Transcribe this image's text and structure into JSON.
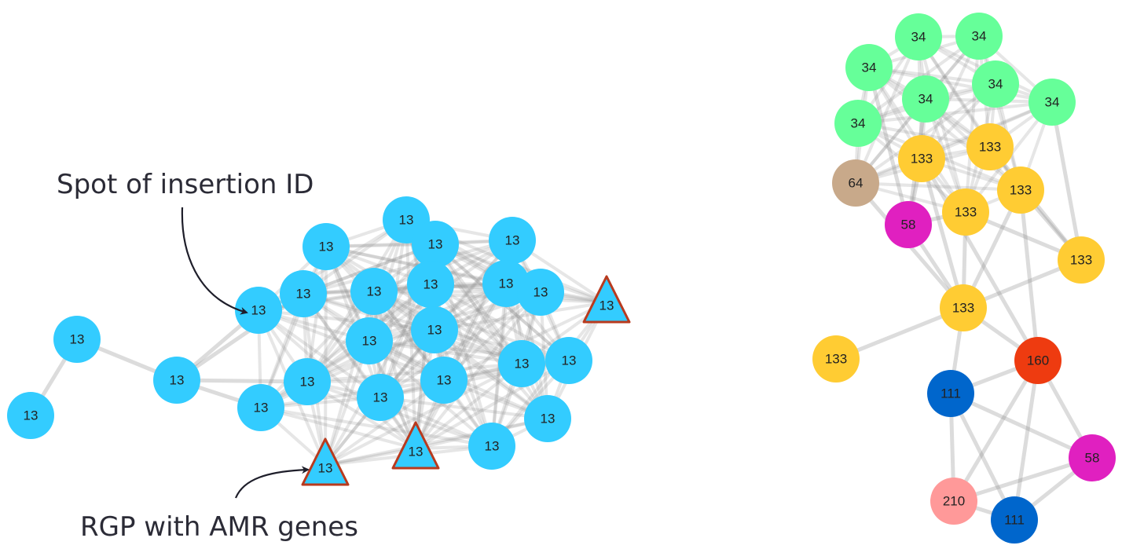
{
  "annotations": {
    "spot_label": "Spot of insertion ID",
    "rgp_label": "RGP with AMR genes"
  },
  "colors": {
    "spot_13": "#33ccff",
    "spot_34": "#66ff99",
    "spot_133": "#ffcc33",
    "spot_64": "#c8a98a",
    "spot_58": "#e020c0",
    "spot_160": "#ee3b10",
    "spot_111": "#0066cc",
    "spot_210": "#ff9999",
    "amr_border": "#b83a1e",
    "edge": "#8c8c8c"
  },
  "networks": [
    {
      "name": "left-network",
      "nodes": [
        {
          "label": "13",
          "color": "spot_13",
          "shape": "circle"
        },
        {
          "label": "13",
          "color": "spot_13",
          "shape": "circle"
        },
        {
          "label": "13",
          "color": "spot_13",
          "shape": "circle"
        },
        {
          "label": "13",
          "color": "spot_13",
          "shape": "circle"
        },
        {
          "label": "13",
          "color": "spot_13",
          "shape": "circle"
        },
        {
          "label": "13",
          "color": "spot_13",
          "shape": "circle"
        },
        {
          "label": "13",
          "color": "spot_13",
          "shape": "circle"
        },
        {
          "label": "13",
          "color": "spot_13",
          "shape": "circle"
        },
        {
          "label": "13",
          "color": "spot_13",
          "shape": "circle"
        },
        {
          "label": "13",
          "color": "spot_13",
          "shape": "circle"
        },
        {
          "label": "13",
          "color": "spot_13",
          "shape": "circle"
        },
        {
          "label": "13",
          "color": "spot_13",
          "shape": "circle"
        },
        {
          "label": "13",
          "color": "spot_13",
          "shape": "circle"
        },
        {
          "label": "13",
          "color": "spot_13",
          "shape": "circle"
        },
        {
          "label": "13",
          "color": "spot_13",
          "shape": "circle"
        },
        {
          "label": "13",
          "color": "spot_13",
          "shape": "circle"
        },
        {
          "label": "13",
          "color": "spot_13",
          "shape": "circle"
        },
        {
          "label": "13",
          "color": "spot_13",
          "shape": "circle"
        },
        {
          "label": "13",
          "color": "spot_13",
          "shape": "circle"
        },
        {
          "label": "13",
          "color": "spot_13",
          "shape": "circle"
        },
        {
          "label": "13",
          "color": "spot_13",
          "shape": "circle"
        },
        {
          "label": "13",
          "color": "spot_13",
          "shape": "circle"
        },
        {
          "label": "13",
          "color": "spot_13",
          "shape": "circle"
        },
        {
          "label": "13",
          "color": "spot_13",
          "shape": "triangle"
        },
        {
          "label": "13",
          "color": "spot_13",
          "shape": "triangle"
        },
        {
          "label": "13",
          "color": "spot_13",
          "shape": "triangle"
        }
      ]
    },
    {
      "name": "right-network",
      "nodes": [
        {
          "label": "34",
          "color": "spot_34",
          "shape": "circle"
        },
        {
          "label": "34",
          "color": "spot_34",
          "shape": "circle"
        },
        {
          "label": "34",
          "color": "spot_34",
          "shape": "circle"
        },
        {
          "label": "34",
          "color": "spot_34",
          "shape": "circle"
        },
        {
          "label": "34",
          "color": "spot_34",
          "shape": "circle"
        },
        {
          "label": "34",
          "color": "spot_34",
          "shape": "circle"
        },
        {
          "label": "34",
          "color": "spot_34",
          "shape": "circle"
        },
        {
          "label": "133",
          "color": "spot_133",
          "shape": "circle"
        },
        {
          "label": "133",
          "color": "spot_133",
          "shape": "circle"
        },
        {
          "label": "64",
          "color": "spot_64",
          "shape": "circle"
        },
        {
          "label": "133",
          "color": "spot_133",
          "shape": "circle"
        },
        {
          "label": "58",
          "color": "spot_58",
          "shape": "circle"
        },
        {
          "label": "133",
          "color": "spot_133",
          "shape": "circle"
        },
        {
          "label": "133",
          "color": "spot_133",
          "shape": "circle"
        },
        {
          "label": "133",
          "color": "spot_133",
          "shape": "circle"
        },
        {
          "label": "133",
          "color": "spot_133",
          "shape": "circle"
        },
        {
          "label": "160",
          "color": "spot_160",
          "shape": "circle"
        },
        {
          "label": "111",
          "color": "spot_111",
          "shape": "circle"
        },
        {
          "label": "58",
          "color": "spot_58",
          "shape": "circle"
        },
        {
          "label": "210",
          "color": "spot_210",
          "shape": "circle"
        },
        {
          "label": "111",
          "color": "spot_111",
          "shape": "circle"
        }
      ]
    }
  ]
}
